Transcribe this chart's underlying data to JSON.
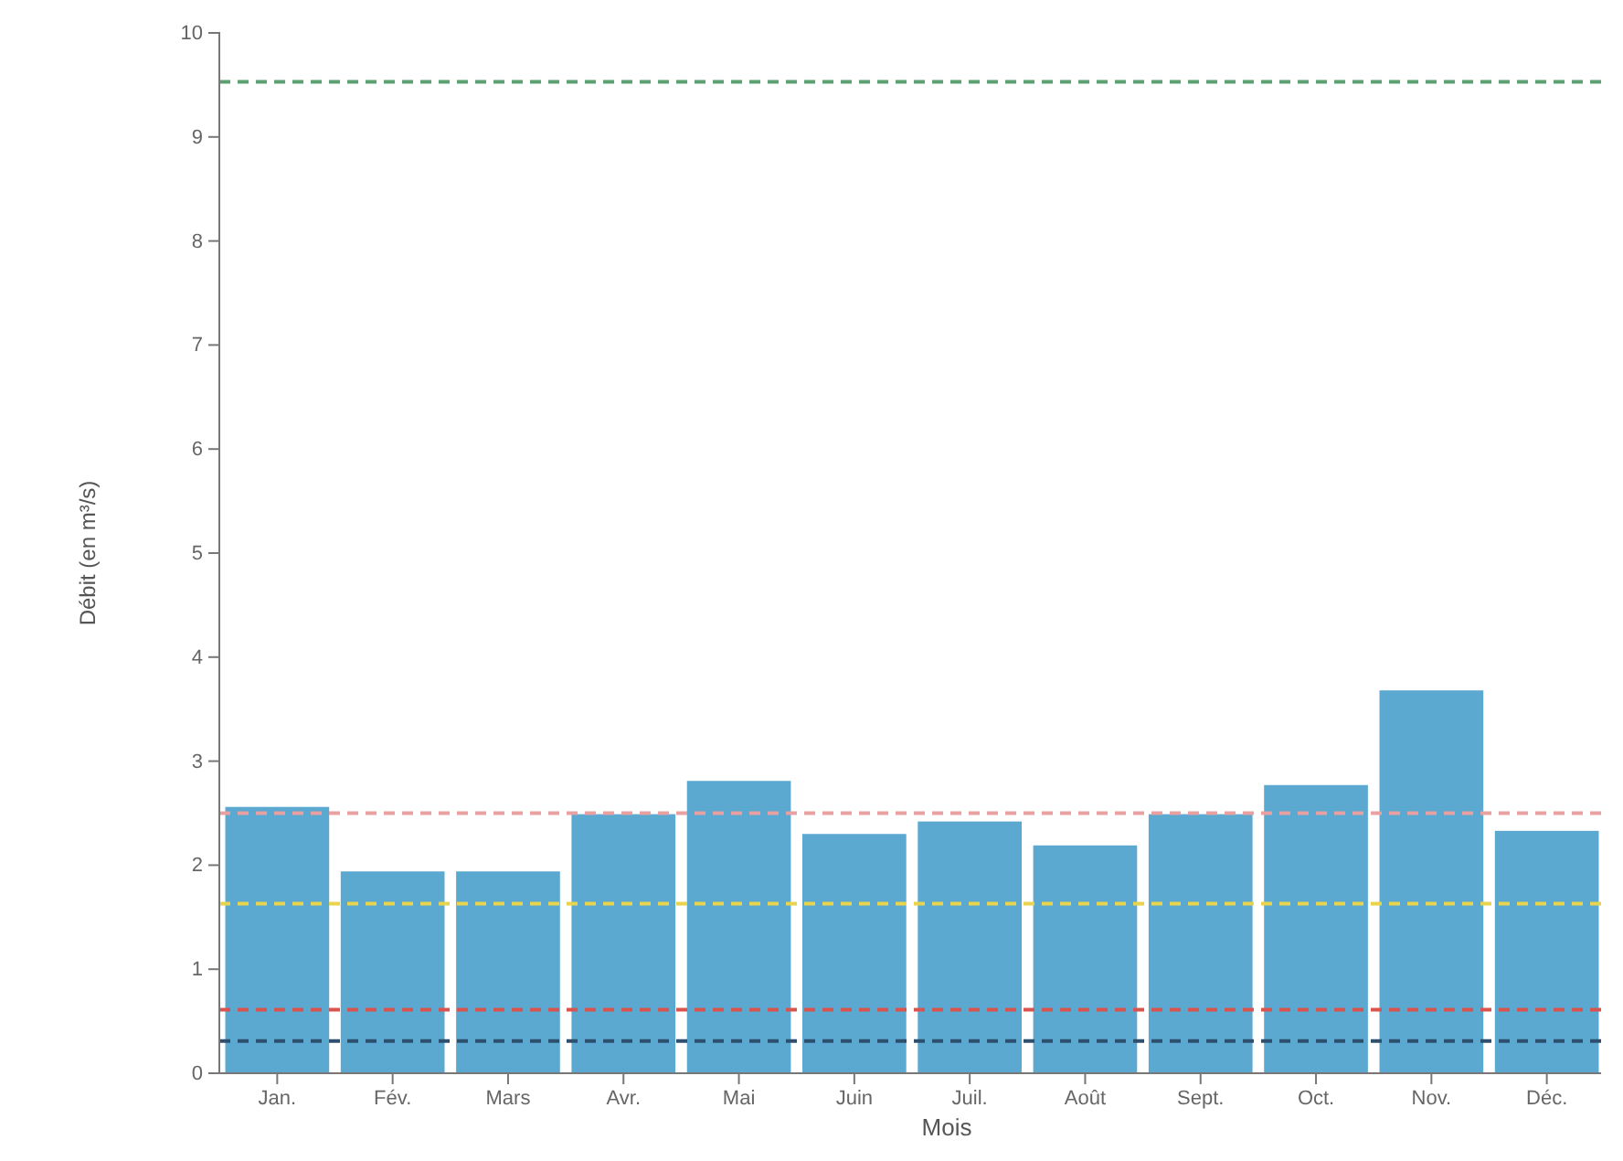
{
  "chart_data": {
    "type": "bar",
    "xlabel": "Mois",
    "ylabel": "Débit (en m³/s)",
    "categories": [
      "Jan.",
      "Fév.",
      "Mars",
      "Avr.",
      "Mai",
      "Juin",
      "Juil.",
      "Août",
      "Sept.",
      "Oct.",
      "Nov.",
      "Déc."
    ],
    "values": [
      2.56,
      1.94,
      1.94,
      2.49,
      2.81,
      2.3,
      2.42,
      2.19,
      2.49,
      2.77,
      3.68,
      2.33
    ],
    "color": "#5ba8d0",
    "ylim": [
      0,
      10
    ],
    "yticks": [
      0,
      1,
      2,
      3,
      4,
      5,
      6,
      7,
      8,
      9,
      10
    ],
    "grid": false,
    "ref_lines": [
      {
        "axis": "y",
        "value": 9.53,
        "color": "#5aa070",
        "line_style": "dashed"
      },
      {
        "axis": "y",
        "value": 2.5,
        "color": "#e8a0a0",
        "line_style": "dashed"
      },
      {
        "axis": "y",
        "value": 1.63,
        "color": "#e8d44d",
        "line_style": "dashed"
      },
      {
        "axis": "y",
        "value": 0.61,
        "color": "#d9534f",
        "line_style": "dashed"
      },
      {
        "axis": "y",
        "value": 0.31,
        "color": "#2f4f6f",
        "line_style": "dashed"
      }
    ]
  }
}
